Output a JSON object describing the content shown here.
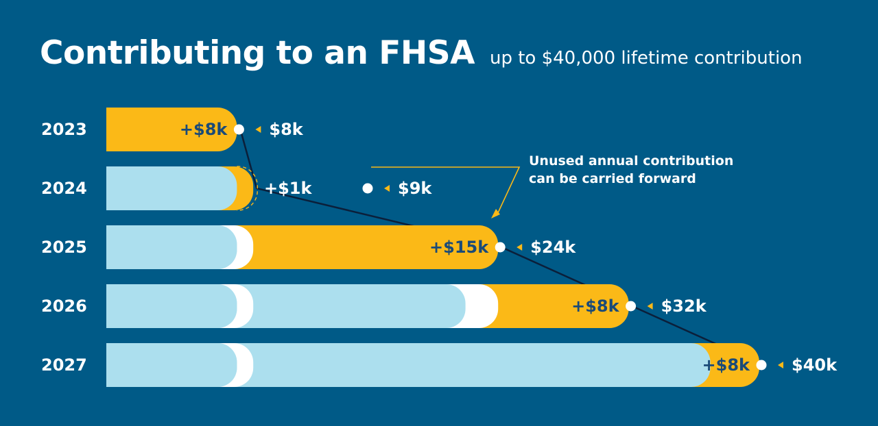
{
  "header": {
    "title": "Contributing to an FHSA",
    "subtitle": "up to $40,000 lifetime contribution"
  },
  "annotation": {
    "line1": "Unused annual contribution",
    "line2": "can be carried forward"
  },
  "colors": {
    "background": "#005a87",
    "new_contribution": "#fbb917",
    "prior_contribution": "#acdfee",
    "carry_forward_gap": "#ffffff",
    "dark_text": "#1a4a78"
  },
  "chart_data": {
    "type": "bar",
    "orientation": "horizontal-stacked",
    "categories": [
      "2023",
      "2024",
      "2025",
      "2026",
      "2027"
    ],
    "rows": [
      {
        "year": "2023",
        "added": 8,
        "added_label": "+$8k",
        "total": 8,
        "total_label": "$8k",
        "carried_forward": false
      },
      {
        "year": "2024",
        "added": 1,
        "added_label": "+$1k",
        "total": 9,
        "total_label": "$9k",
        "carried_forward": true
      },
      {
        "year": "2025",
        "added": 15,
        "added_label": "+$15k",
        "total": 24,
        "total_label": "$24k",
        "carried_forward": false
      },
      {
        "year": "2026",
        "added": 8,
        "added_label": "+$8k",
        "total": 32,
        "total_label": "$32k",
        "carried_forward": false
      },
      {
        "year": "2027",
        "added": 8,
        "added_label": "+$8k",
        "total": 40,
        "total_label": "$40k",
        "carried_forward": false
      }
    ],
    "xlim": [
      0,
      40
    ],
    "grid": false,
    "legend": "none"
  }
}
